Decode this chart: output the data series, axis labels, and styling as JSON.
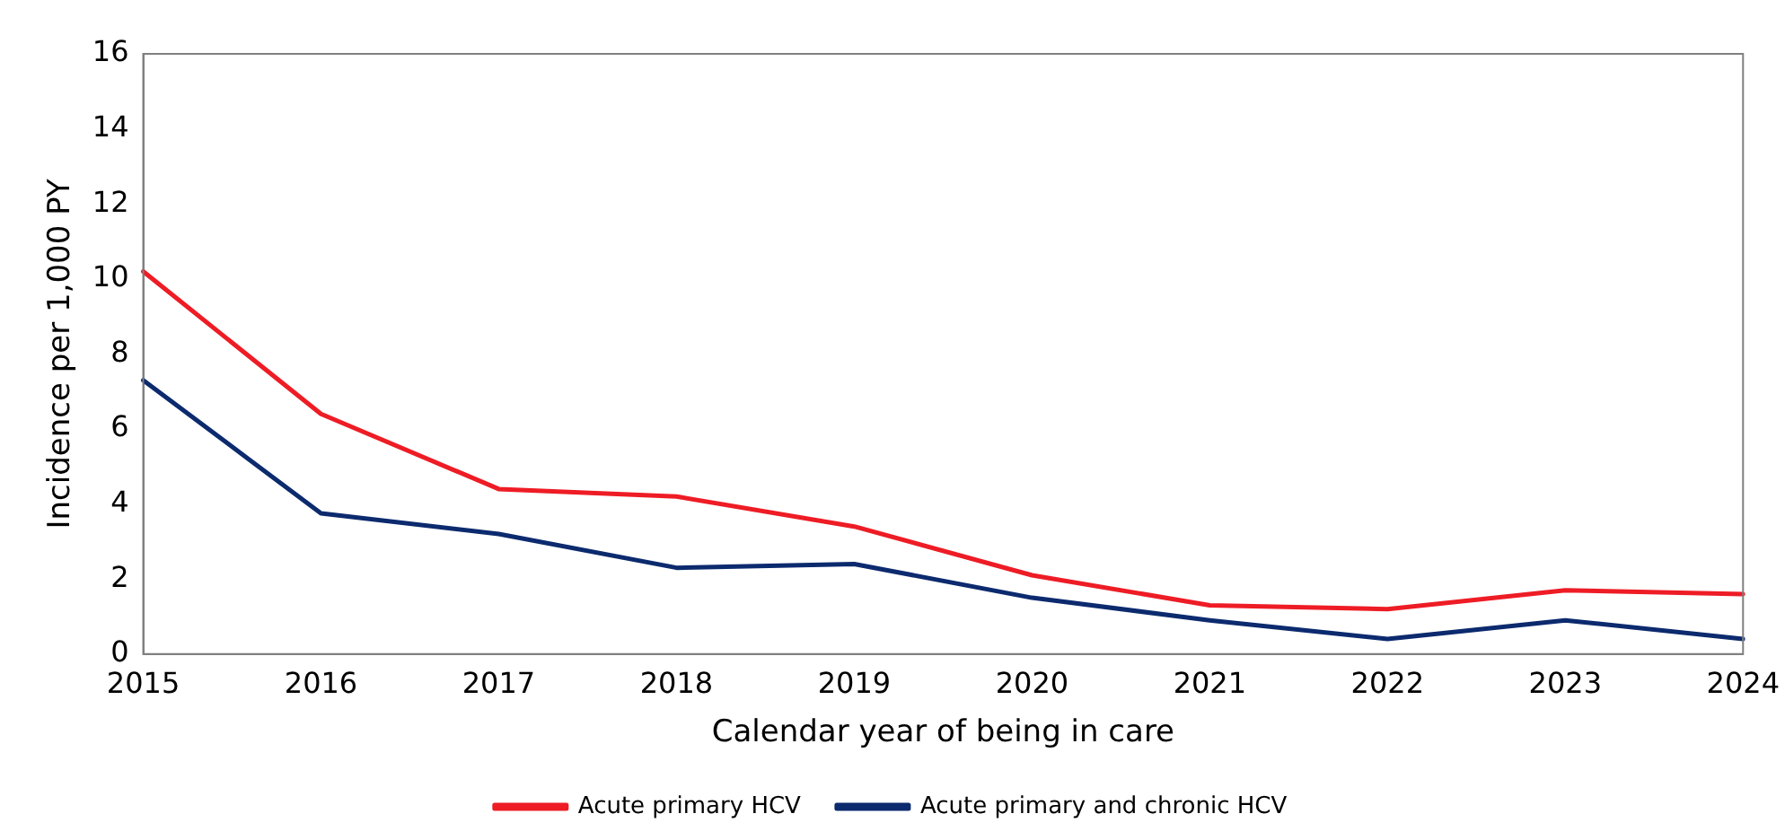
{
  "chart_data": {
    "type": "line",
    "xlabel": "Calendar year of being in care",
    "ylabel": "Incidence per 1,000 PY",
    "categories": [
      "2015",
      "2016",
      "2017",
      "2018",
      "2019",
      "2020",
      "2021",
      "2022",
      "2023",
      "2024"
    ],
    "series": [
      {
        "name": "Acute primary HCV",
        "color": "#ee1c25",
        "values": [
          10.2,
          6.4,
          4.4,
          4.2,
          3.4,
          2.1,
          1.3,
          1.2,
          1.7,
          1.6
        ]
      },
      {
        "name": "Acute primary and chronic HCV",
        "color": "#0c2a6e",
        "values": [
          7.3,
          3.75,
          3.2,
          2.3,
          2.4,
          1.5,
          0.9,
          0.4,
          0.9,
          0.4
        ]
      }
    ],
    "ylim": [
      0,
      16
    ],
    "yticks": [
      0,
      2,
      4,
      6,
      8,
      10,
      12,
      14,
      16
    ],
    "grid": false,
    "legend": "bottom",
    "marker": "none",
    "line_style": "solid"
  }
}
